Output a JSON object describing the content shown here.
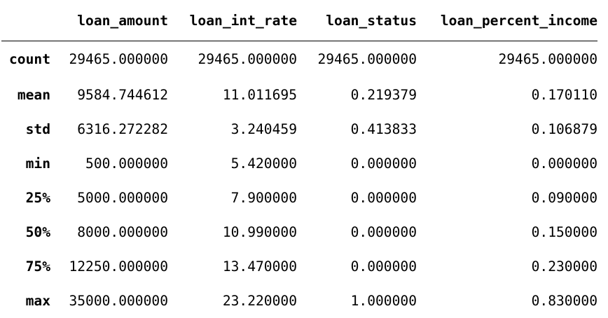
{
  "table": {
    "index_header": "",
    "columns": [
      "loan_amount",
      "loan_int_rate",
      "loan_status",
      "loan_percent_income"
    ],
    "rows": [
      {
        "label": "count",
        "values": [
          "29465.000000",
          "29465.000000",
          "29465.000000",
          "29465.000000"
        ]
      },
      {
        "label": "mean",
        "values": [
          "9584.744612",
          "11.011695",
          "0.219379",
          "0.170110"
        ]
      },
      {
        "label": "std",
        "values": [
          "6316.272282",
          "3.240459",
          "0.413833",
          "0.106879"
        ]
      },
      {
        "label": "min",
        "values": [
          "500.000000",
          "5.420000",
          "0.000000",
          "0.000000"
        ]
      },
      {
        "label": "25%",
        "values": [
          "5000.000000",
          "7.900000",
          "0.000000",
          "0.090000"
        ]
      },
      {
        "label": "50%",
        "values": [
          "8000.000000",
          "10.990000",
          "0.000000",
          "0.150000"
        ]
      },
      {
        "label": "75%",
        "values": [
          "12250.000000",
          "13.470000",
          "0.000000",
          "0.230000"
        ]
      },
      {
        "label": "max",
        "values": [
          "35000.000000",
          "23.220000",
          "1.000000",
          "0.830000"
        ]
      }
    ]
  }
}
